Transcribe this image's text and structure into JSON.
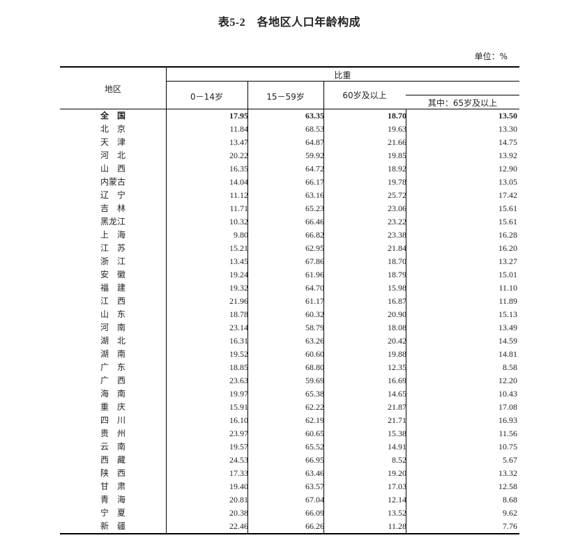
{
  "title": "表5-2　各地区人口年龄构成",
  "unit": "单位：%",
  "header": {
    "region": "地区",
    "group": "比重",
    "col1": "0－14岁",
    "col2": "15－59岁",
    "col3": "60岁及以上",
    "col4": "其中：65岁及以上"
  },
  "rows": [
    {
      "region": "全　国",
      "values": [
        "17.95",
        "63.35",
        "18.70",
        "13.50"
      ],
      "bold": true
    },
    {
      "region": "北　京",
      "values": [
        "11.84",
        "68.53",
        "19.63",
        "13.30"
      ]
    },
    {
      "region": "天　津",
      "values": [
        "13.47",
        "64.87",
        "21.66",
        "14.75"
      ]
    },
    {
      "region": "河　北",
      "values": [
        "20.22",
        "59.92",
        "19.85",
        "13.92"
      ]
    },
    {
      "region": "山　西",
      "values": [
        "16.35",
        "64.72",
        "18.92",
        "12.90"
      ]
    },
    {
      "region": "内蒙古",
      "values": [
        "14.04",
        "66.17",
        "19.78",
        "13.05"
      ]
    },
    {
      "region": "辽　宁",
      "values": [
        "11.12",
        "63.16",
        "25.72",
        "17.42"
      ]
    },
    {
      "region": "吉　林",
      "values": [
        "11.71",
        "65.23",
        "23.06",
        "15.61"
      ]
    },
    {
      "region": "黑龙江",
      "values": [
        "10.32",
        "66.46",
        "23.22",
        "15.61"
      ]
    },
    {
      "region": "上　海",
      "values": [
        "9.80",
        "66.82",
        "23.38",
        "16.28"
      ]
    },
    {
      "region": "江　苏",
      "values": [
        "15.21",
        "62.95",
        "21.84",
        "16.20"
      ]
    },
    {
      "region": "浙　江",
      "values": [
        "13.45",
        "67.86",
        "18.70",
        "13.27"
      ]
    },
    {
      "region": "安　徽",
      "values": [
        "19.24",
        "61.96",
        "18.79",
        "15.01"
      ]
    },
    {
      "region": "福　建",
      "values": [
        "19.32",
        "64.70",
        "15.98",
        "11.10"
      ]
    },
    {
      "region": "江　西",
      "values": [
        "21.96",
        "61.17",
        "16.87",
        "11.89"
      ]
    },
    {
      "region": "山　东",
      "values": [
        "18.78",
        "60.32",
        "20.90",
        "15.13"
      ]
    },
    {
      "region": "河　南",
      "values": [
        "23.14",
        "58.79",
        "18.08",
        "13.49"
      ]
    },
    {
      "region": "湖　北",
      "values": [
        "16.31",
        "63.26",
        "20.42",
        "14.59"
      ]
    },
    {
      "region": "湖　南",
      "values": [
        "19.52",
        "60.60",
        "19.88",
        "14.81"
      ]
    },
    {
      "region": "广　东",
      "values": [
        "18.85",
        "68.80",
        "12.35",
        "8.58"
      ]
    },
    {
      "region": "广　西",
      "values": [
        "23.63",
        "59.69",
        "16.69",
        "12.20"
      ]
    },
    {
      "region": "海　南",
      "values": [
        "19.97",
        "65.38",
        "14.65",
        "10.43"
      ]
    },
    {
      "region": "重　庆",
      "values": [
        "15.91",
        "62.22",
        "21.87",
        "17.08"
      ]
    },
    {
      "region": "四　川",
      "values": [
        "16.10",
        "62.19",
        "21.71",
        "16.93"
      ]
    },
    {
      "region": "贵　州",
      "values": [
        "23.97",
        "60.65",
        "15.38",
        "11.56"
      ]
    },
    {
      "region": "云　南",
      "values": [
        "19.57",
        "65.52",
        "14.91",
        "10.75"
      ]
    },
    {
      "region": "西　藏",
      "values": [
        "24.53",
        "66.95",
        "8.52",
        "5.67"
      ]
    },
    {
      "region": "陕　西",
      "values": [
        "17.33",
        "63.46",
        "19.20",
        "13.32"
      ]
    },
    {
      "region": "甘　肃",
      "values": [
        "19.40",
        "63.57",
        "17.03",
        "12.58"
      ]
    },
    {
      "region": "青　海",
      "values": [
        "20.81",
        "67.04",
        "12.14",
        "8.68"
      ]
    },
    {
      "region": "宁　夏",
      "values": [
        "20.38",
        "66.09",
        "13.52",
        "9.62"
      ]
    },
    {
      "region": "新　疆",
      "values": [
        "22.46",
        "66.26",
        "11.28",
        "7.76"
      ]
    }
  ]
}
